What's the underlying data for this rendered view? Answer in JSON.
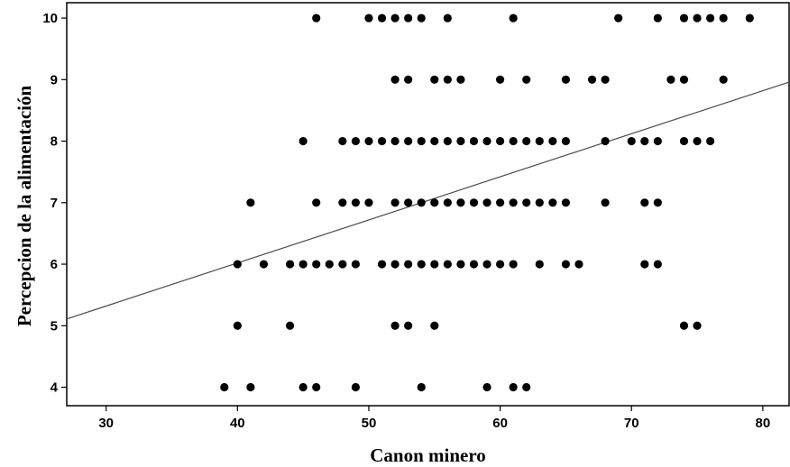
{
  "chart_data": {
    "type": "scatter",
    "xlabel": "Canon minero",
    "ylabel": "Percepcion de la alimentación",
    "xlim": [
      27,
      82
    ],
    "ylim": [
      3.7,
      10.25
    ],
    "x_ticks": [
      30,
      40,
      50,
      60,
      70,
      80
    ],
    "y_ticks": [
      4,
      5,
      6,
      7,
      8,
      9,
      10
    ],
    "grid": false,
    "legend": "none",
    "marker_color": "#000000",
    "line_color": "#4a4a4a",
    "fit_line": {
      "x": [
        27,
        82
      ],
      "y": [
        5.11,
        8.96
      ]
    },
    "points": [
      {
        "x": 46,
        "y": 10
      },
      {
        "x": 50,
        "y": 10
      },
      {
        "x": 51,
        "y": 10
      },
      {
        "x": 52,
        "y": 10
      },
      {
        "x": 53,
        "y": 10
      },
      {
        "x": 54,
        "y": 10
      },
      {
        "x": 56,
        "y": 10
      },
      {
        "x": 61,
        "y": 10
      },
      {
        "x": 69,
        "y": 10
      },
      {
        "x": 72,
        "y": 10
      },
      {
        "x": 74,
        "y": 10
      },
      {
        "x": 75,
        "y": 10
      },
      {
        "x": 76,
        "y": 10
      },
      {
        "x": 77,
        "y": 10
      },
      {
        "x": 79,
        "y": 10
      },
      {
        "x": 52,
        "y": 9
      },
      {
        "x": 53,
        "y": 9
      },
      {
        "x": 55,
        "y": 9
      },
      {
        "x": 56,
        "y": 9
      },
      {
        "x": 57,
        "y": 9
      },
      {
        "x": 60,
        "y": 9
      },
      {
        "x": 62,
        "y": 9
      },
      {
        "x": 65,
        "y": 9
      },
      {
        "x": 67,
        "y": 9
      },
      {
        "x": 68,
        "y": 9
      },
      {
        "x": 73,
        "y": 9
      },
      {
        "x": 74,
        "y": 9
      },
      {
        "x": 77,
        "y": 9
      },
      {
        "x": 45,
        "y": 8
      },
      {
        "x": 48,
        "y": 8
      },
      {
        "x": 49,
        "y": 8
      },
      {
        "x": 50,
        "y": 8
      },
      {
        "x": 51,
        "y": 8
      },
      {
        "x": 52,
        "y": 8
      },
      {
        "x": 53,
        "y": 8
      },
      {
        "x": 54,
        "y": 8
      },
      {
        "x": 55,
        "y": 8
      },
      {
        "x": 56,
        "y": 8
      },
      {
        "x": 57,
        "y": 8
      },
      {
        "x": 58,
        "y": 8
      },
      {
        "x": 59,
        "y": 8
      },
      {
        "x": 60,
        "y": 8
      },
      {
        "x": 61,
        "y": 8
      },
      {
        "x": 62,
        "y": 8
      },
      {
        "x": 63,
        "y": 8
      },
      {
        "x": 64,
        "y": 8
      },
      {
        "x": 65,
        "y": 8
      },
      {
        "x": 68,
        "y": 8
      },
      {
        "x": 70,
        "y": 8
      },
      {
        "x": 71,
        "y": 8
      },
      {
        "x": 72,
        "y": 8
      },
      {
        "x": 74,
        "y": 8
      },
      {
        "x": 75,
        "y": 8
      },
      {
        "x": 76,
        "y": 8
      },
      {
        "x": 41,
        "y": 7
      },
      {
        "x": 46,
        "y": 7
      },
      {
        "x": 48,
        "y": 7
      },
      {
        "x": 49,
        "y": 7
      },
      {
        "x": 50,
        "y": 7
      },
      {
        "x": 52,
        "y": 7
      },
      {
        "x": 53,
        "y": 7
      },
      {
        "x": 54,
        "y": 7
      },
      {
        "x": 55,
        "y": 7
      },
      {
        "x": 56,
        "y": 7
      },
      {
        "x": 57,
        "y": 7
      },
      {
        "x": 58,
        "y": 7
      },
      {
        "x": 59,
        "y": 7
      },
      {
        "x": 60,
        "y": 7
      },
      {
        "x": 61,
        "y": 7
      },
      {
        "x": 62,
        "y": 7
      },
      {
        "x": 63,
        "y": 7
      },
      {
        "x": 64,
        "y": 7
      },
      {
        "x": 65,
        "y": 7
      },
      {
        "x": 68,
        "y": 7
      },
      {
        "x": 71,
        "y": 7
      },
      {
        "x": 72,
        "y": 7
      },
      {
        "x": 40,
        "y": 6
      },
      {
        "x": 42,
        "y": 6
      },
      {
        "x": 44,
        "y": 6
      },
      {
        "x": 45,
        "y": 6
      },
      {
        "x": 46,
        "y": 6
      },
      {
        "x": 47,
        "y": 6
      },
      {
        "x": 48,
        "y": 6
      },
      {
        "x": 49,
        "y": 6
      },
      {
        "x": 51,
        "y": 6
      },
      {
        "x": 52,
        "y": 6
      },
      {
        "x": 53,
        "y": 6
      },
      {
        "x": 54,
        "y": 6
      },
      {
        "x": 55,
        "y": 6
      },
      {
        "x": 56,
        "y": 6
      },
      {
        "x": 57,
        "y": 6
      },
      {
        "x": 58,
        "y": 6
      },
      {
        "x": 59,
        "y": 6
      },
      {
        "x": 60,
        "y": 6
      },
      {
        "x": 61,
        "y": 6
      },
      {
        "x": 63,
        "y": 6
      },
      {
        "x": 65,
        "y": 6
      },
      {
        "x": 66,
        "y": 6
      },
      {
        "x": 71,
        "y": 6
      },
      {
        "x": 72,
        "y": 6
      },
      {
        "x": 40,
        "y": 5
      },
      {
        "x": 44,
        "y": 5
      },
      {
        "x": 52,
        "y": 5
      },
      {
        "x": 53,
        "y": 5
      },
      {
        "x": 55,
        "y": 5
      },
      {
        "x": 74,
        "y": 5
      },
      {
        "x": 75,
        "y": 5
      },
      {
        "x": 39,
        "y": 4
      },
      {
        "x": 41,
        "y": 4
      },
      {
        "x": 45,
        "y": 4
      },
      {
        "x": 46,
        "y": 4
      },
      {
        "x": 49,
        "y": 4
      },
      {
        "x": 54,
        "y": 4
      },
      {
        "x": 59,
        "y": 4
      },
      {
        "x": 61,
        "y": 4
      },
      {
        "x": 62,
        "y": 4
      }
    ]
  }
}
